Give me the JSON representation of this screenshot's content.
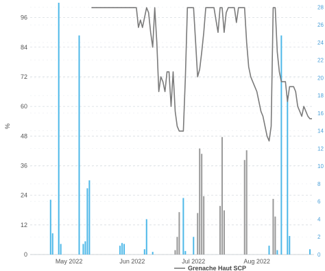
{
  "chart_data": {
    "type": "bar+line",
    "ylabel": "%",
    "ylim": [
      0,
      102
    ],
    "y2lim": [
      0,
      28.5
    ],
    "yticks": [
      0,
      12,
      24,
      36,
      48,
      60,
      72,
      84,
      96
    ],
    "y2ticks": [
      0,
      2,
      4,
      6,
      8,
      10,
      12,
      14,
      16,
      18,
      20,
      22,
      24,
      26,
      28
    ],
    "x_month_labels": [
      {
        "date": "2022-05-01",
        "label": "May 2022"
      },
      {
        "date": "2022-06-01",
        "label": "Jun 2022"
      },
      {
        "date": "2022-07-01",
        "label": "Jul 2022"
      },
      {
        "date": "2022-08-01",
        "label": "Aug 2022"
      }
    ],
    "xlim": [
      "2022-04-12",
      "2022-08-29"
    ],
    "grid": true,
    "legend": {
      "position": "bottom",
      "entries": [
        "Grenache Haut SCP"
      ]
    },
    "colors": {
      "line": "#7a7a7a",
      "bar_blue": "#4db8e8",
      "bar_gray": "#999999",
      "grid": "#d6dbe0"
    },
    "series": [
      {
        "name": "Grenache Haut SCP",
        "kind": "line",
        "axis": "left",
        "points": [
          [
            "2022-05-12",
            100
          ],
          [
            "2022-05-20",
            100
          ],
          [
            "2022-05-25",
            100
          ],
          [
            "2022-05-26",
            100
          ],
          [
            "2022-05-27",
            100
          ],
          [
            "2022-05-31",
            100
          ],
          [
            "2022-06-02",
            100
          ],
          [
            "2022-06-03",
            100
          ],
          [
            "2022-06-04",
            92
          ],
          [
            "2022-06-05",
            95
          ],
          [
            "2022-06-06",
            92
          ],
          [
            "2022-06-07",
            96
          ],
          [
            "2022-06-08",
            100
          ],
          [
            "2022-06-09",
            98
          ],
          [
            "2022-06-10",
            90
          ],
          [
            "2022-06-11",
            84
          ],
          [
            "2022-06-12",
            100
          ],
          [
            "2022-06-13",
            86
          ],
          [
            "2022-06-14",
            66
          ],
          [
            "2022-06-15",
            72
          ],
          [
            "2022-06-16",
            70
          ],
          [
            "2022-06-17",
            66
          ],
          [
            "2022-06-18",
            74
          ],
          [
            "2022-06-19",
            74
          ],
          [
            "2022-06-20",
            60
          ],
          [
            "2022-06-21",
            74
          ],
          [
            "2022-06-22",
            58
          ],
          [
            "2022-06-23",
            52
          ],
          [
            "2022-06-24",
            50
          ],
          [
            "2022-06-25",
            50
          ],
          [
            "2022-06-26",
            50
          ],
          [
            "2022-06-27",
            72
          ],
          [
            "2022-06-28",
            100
          ],
          [
            "2022-06-29",
            100
          ],
          [
            "2022-06-30",
            100
          ],
          [
            "2022-07-01",
            100
          ],
          [
            "2022-07-02",
            86
          ],
          [
            "2022-07-03",
            72
          ],
          [
            "2022-07-04",
            75
          ],
          [
            "2022-07-05",
            82
          ],
          [
            "2022-07-06",
            90
          ],
          [
            "2022-07-07",
            100
          ],
          [
            "2022-07-08",
            100
          ],
          [
            "2022-07-09",
            100
          ],
          [
            "2022-07-10",
            100
          ],
          [
            "2022-07-11",
            100
          ],
          [
            "2022-07-12",
            95
          ],
          [
            "2022-07-13",
            90
          ],
          [
            "2022-07-14",
            100
          ],
          [
            "2022-07-15",
            100
          ],
          [
            "2022-07-16",
            90
          ],
          [
            "2022-07-17",
            98
          ],
          [
            "2022-07-18",
            100
          ],
          [
            "2022-07-19",
            100
          ],
          [
            "2022-07-20",
            100
          ],
          [
            "2022-07-21",
            100
          ],
          [
            "2022-07-22",
            94
          ],
          [
            "2022-07-23",
            100
          ],
          [
            "2022-07-24",
            100
          ],
          [
            "2022-07-25",
            100
          ],
          [
            "2022-07-26",
            100
          ],
          [
            "2022-07-27",
            86
          ],
          [
            "2022-07-28",
            76
          ],
          [
            "2022-07-29",
            72
          ],
          [
            "2022-07-30",
            70
          ],
          [
            "2022-07-31",
            68
          ],
          [
            "2022-08-01",
            66
          ],
          [
            "2022-08-02",
            62
          ],
          [
            "2022-08-03",
            58
          ],
          [
            "2022-08-04",
            56
          ],
          [
            "2022-08-05",
            52
          ],
          [
            "2022-08-06",
            48
          ],
          [
            "2022-08-07",
            46
          ],
          [
            "2022-08-08",
            52
          ],
          [
            "2022-08-09",
            100
          ],
          [
            "2022-08-10",
            100
          ],
          [
            "2022-08-11",
            82
          ],
          [
            "2022-08-12",
            74
          ],
          [
            "2022-08-13",
            70
          ],
          [
            "2022-08-14",
            70
          ],
          [
            "2022-08-15",
            70
          ],
          [
            "2022-08-16",
            62
          ],
          [
            "2022-08-17",
            68
          ],
          [
            "2022-08-18",
            68
          ],
          [
            "2022-08-19",
            68
          ],
          [
            "2022-08-20",
            66
          ],
          [
            "2022-08-21",
            60
          ],
          [
            "2022-08-22",
            58
          ],
          [
            "2022-08-23",
            56
          ],
          [
            "2022-08-24",
            60
          ],
          [
            "2022-08-25",
            58
          ],
          [
            "2022-08-26",
            56
          ],
          [
            "2022-08-27",
            55
          ],
          [
            "2022-08-28",
            55
          ]
        ]
      },
      {
        "name": "",
        "kind": "bar",
        "axis": "right",
        "color": "blue",
        "points": [
          [
            "2022-04-22",
            6.2
          ],
          [
            "2022-04-23",
            2.4
          ],
          [
            "2022-04-26",
            28.5
          ],
          [
            "2022-04-27",
            1.2
          ],
          [
            "2022-05-06",
            24.8
          ],
          [
            "2022-05-08",
            1.2
          ],
          [
            "2022-05-09",
            1.5
          ],
          [
            "2022-05-10",
            7.5
          ],
          [
            "2022-05-11",
            8.4
          ],
          [
            "2022-05-26",
            1.0
          ],
          [
            "2022-05-27",
            1.3
          ],
          [
            "2022-05-28",
            1.2
          ],
          [
            "2022-06-07",
            0.6
          ],
          [
            "2022-06-08",
            4.0
          ],
          [
            "2022-06-11",
            0.3
          ],
          [
            "2022-06-26",
            6.4
          ],
          [
            "2022-06-27",
            0.4
          ],
          [
            "2022-07-01",
            2.0
          ],
          [
            "2022-08-07",
            1.0
          ],
          [
            "2022-08-11",
            0.5
          ],
          [
            "2022-08-13",
            24.8
          ],
          [
            "2022-08-16",
            18.0
          ],
          [
            "2022-08-17",
            2.1
          ],
          [
            "2022-08-27",
            0.6
          ]
        ]
      },
      {
        "name": "",
        "kind": "bar",
        "axis": "right",
        "color": "gray",
        "points": [
          [
            "2022-06-22",
            0.5
          ],
          [
            "2022-06-23",
            2.0
          ],
          [
            "2022-06-24",
            4.8
          ],
          [
            "2022-07-03",
            4.7
          ],
          [
            "2022-07-04",
            12.0
          ],
          [
            "2022-07-05",
            11.4
          ],
          [
            "2022-07-06",
            6.6
          ],
          [
            "2022-07-14",
            5.5
          ],
          [
            "2022-07-15",
            13.3
          ],
          [
            "2022-07-16",
            5.0
          ],
          [
            "2022-07-26",
            10.7
          ],
          [
            "2022-07-27",
            11.8
          ],
          [
            "2022-08-09",
            6.3
          ],
          [
            "2022-08-10",
            4.3
          ]
        ]
      }
    ]
  }
}
